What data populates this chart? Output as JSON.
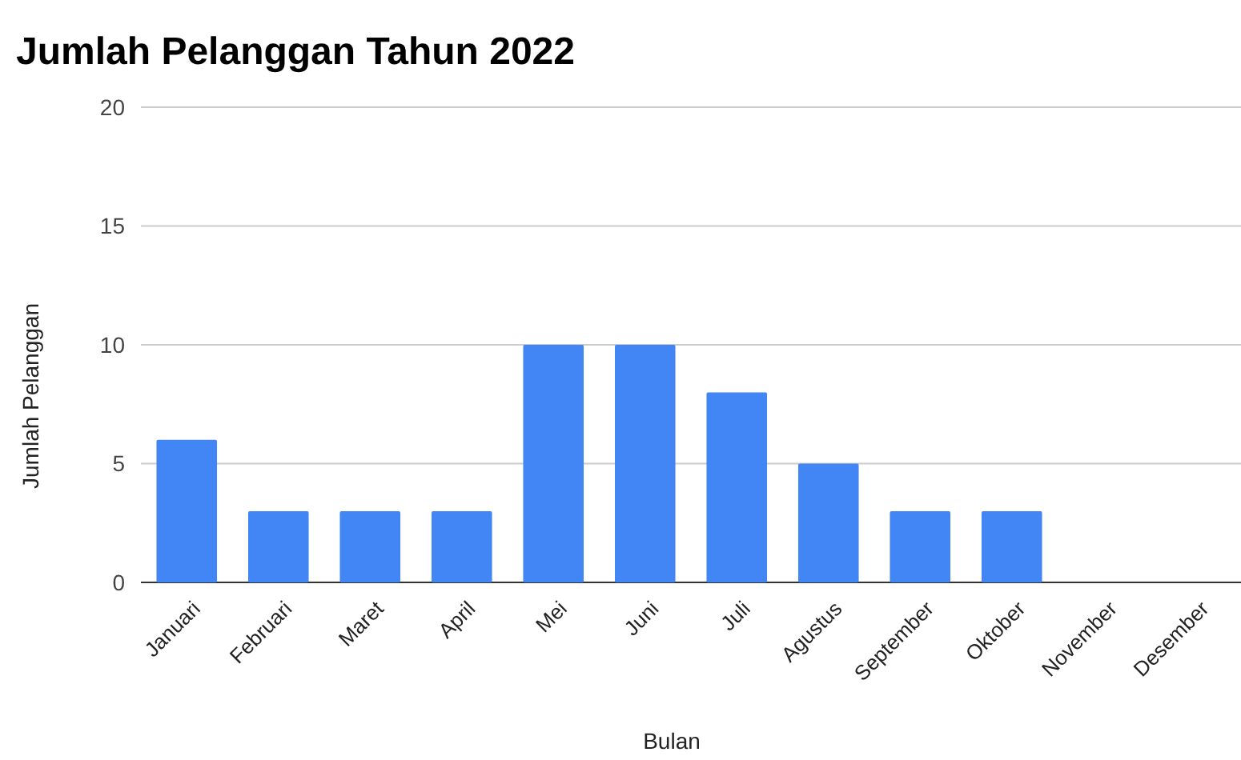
{
  "chart_data": {
    "type": "bar",
    "title": "Jumlah Pelanggan Tahun 2022",
    "xlabel": "Bulan",
    "ylabel": "Jumlah Pelanggan",
    "categories": [
      "Januari",
      "Februari",
      "Maret",
      "April",
      "Mei",
      "Juni",
      "Juli",
      "Agustus",
      "September",
      "Oktober",
      "November",
      "Desember"
    ],
    "values": [
      6,
      3,
      3,
      3,
      10,
      10,
      8,
      5,
      3,
      3,
      0,
      0
    ],
    "color": "#4285f4",
    "ylim": [
      0,
      20
    ],
    "yticks": [
      0,
      5,
      10,
      15,
      20
    ],
    "grid": "y"
  }
}
